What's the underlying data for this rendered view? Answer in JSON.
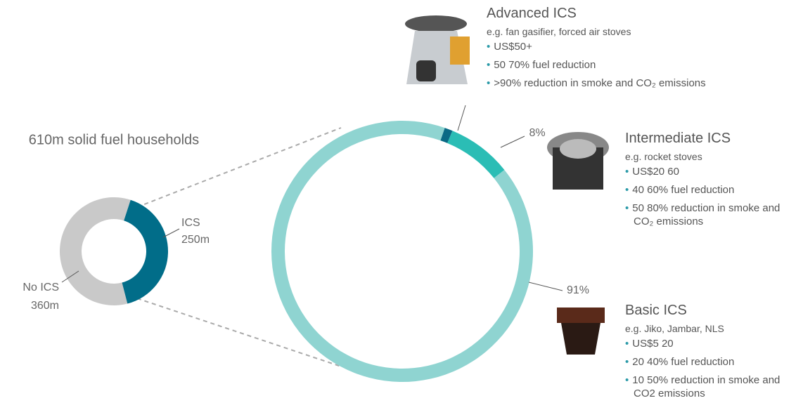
{
  "chart_data": [
    {
      "type": "donut",
      "title": "610m solid fuel households",
      "categories": [
        "No ICS",
        "ICS"
      ],
      "values": [
        360,
        250
      ],
      "value_labels": [
        "360m",
        "250m"
      ],
      "colors": [
        "#c9c9c9",
        "#016d89"
      ]
    },
    {
      "type": "donut",
      "categories": [
        "Advanced ICS",
        "Intermediate ICS",
        "Basic ICS"
      ],
      "values": [
        1,
        8,
        91
      ],
      "value_labels": [
        null,
        "8%",
        "91%"
      ],
      "colors": [
        "#0a6a85",
        "#2bbdb5",
        "#8fd4d1"
      ]
    }
  ],
  "descriptions": [
    {
      "subtitle": "e.g. fan gasifier, forced air stoves",
      "bullets": [
        "US$50+",
        "50 70% fuel reduction",
        ">90% reduction in smoke and CO₂ emissions"
      ]
    },
    {
      "subtitle": "e.g. rocket stoves",
      "bullets": [
        "US$20 60",
        "40 60% fuel reduction",
        "50 80% reduction in smoke and CO₂ emissions"
      ]
    },
    {
      "subtitle": "e.g. Jiko, Jambar, NLS",
      "bullets": [
        "US$5 20",
        "20 40% fuel reduction",
        "10 50% reduction in smoke and CO2 emissions"
      ]
    }
  ]
}
